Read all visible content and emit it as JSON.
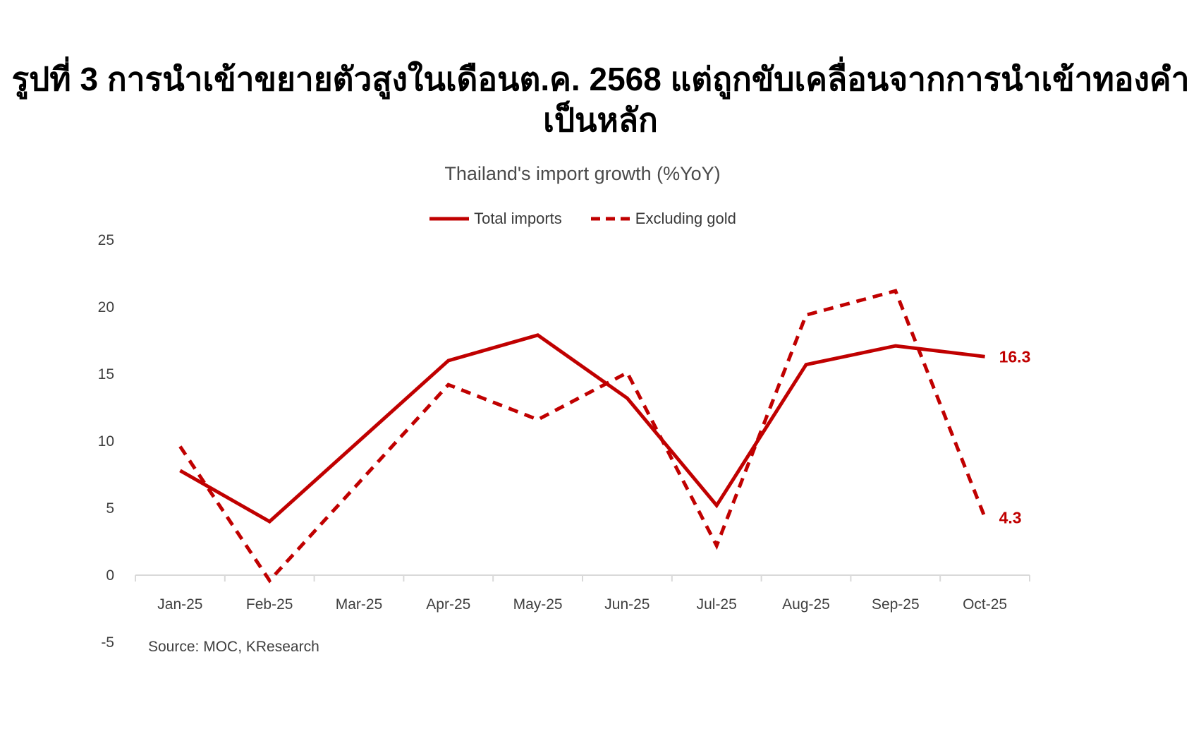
{
  "figure_title": "รูปที่ 3 การนำเข้าขยายตัวสูงในเดือนต.ค. 2568 แต่ถูกขับเคลื่อนจากการนำเข้าทองคำเป็นหลัก",
  "source_note": "Source: MOC, KResearch",
  "colors": {
    "line_red": "#c00000",
    "axis_line": "#d9d9d9",
    "tick_text": "#3f3f3f",
    "title_text": "#000000",
    "chart_title_text": "#4a4a4a"
  },
  "chart_data": {
    "type": "line",
    "title": "Thailand's import growth (%YoY)",
    "categories": [
      "Jan-25",
      "Feb-25",
      "Mar-25",
      "Apr-25",
      "May-25",
      "Jun-25",
      "Jul-25",
      "Aug-25",
      "Sep-25",
      "Oct-25"
    ],
    "series": [
      {
        "name": "Total imports",
        "style": "solid",
        "values": [
          7.8,
          4.0,
          10.0,
          16.0,
          17.9,
          13.2,
          5.2,
          15.7,
          17.1,
          16.3
        ],
        "end_label": "16.3"
      },
      {
        "name": "Excluding gold",
        "style": "dashed",
        "values": [
          9.6,
          -0.4,
          6.9,
          14.2,
          11.6,
          15.1,
          2.2,
          19.4,
          21.2,
          4.3
        ],
        "end_label": "4.3"
      }
    ],
    "y_ticks": [
      25,
      20,
      15,
      10,
      5,
      0,
      -5
    ],
    "ylim": [
      -5,
      25
    ],
    "xlabel": "",
    "ylabel": "",
    "grid": false,
    "legend_position": "top",
    "line_color": "#c00000"
  }
}
